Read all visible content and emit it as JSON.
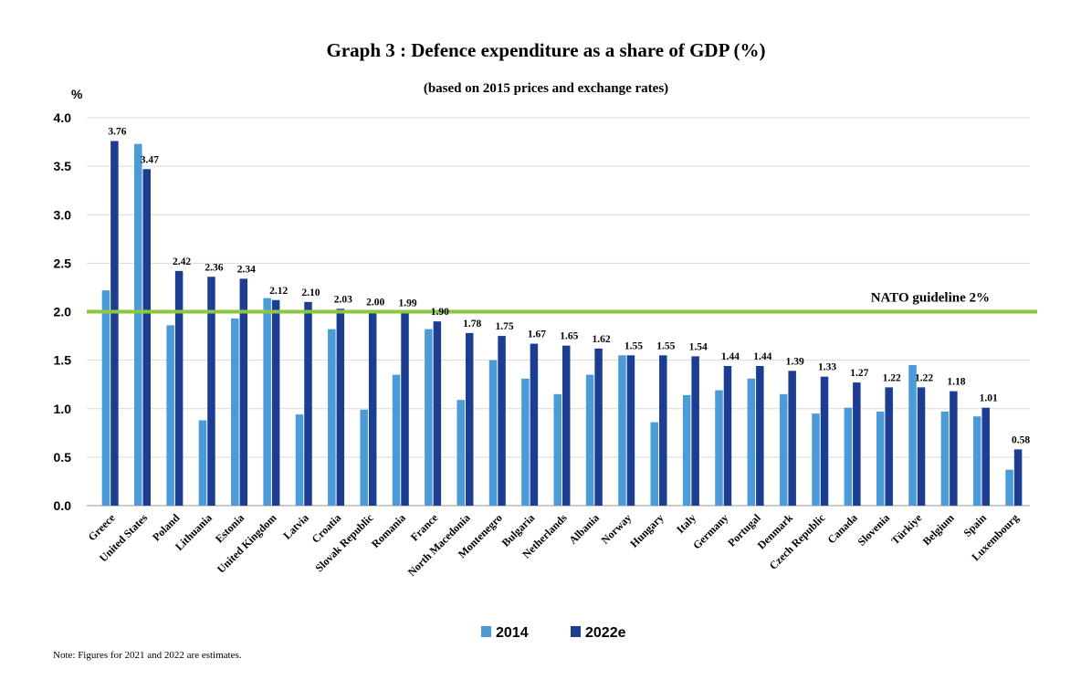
{
  "chart_data": {
    "type": "bar",
    "title": "Graph 3 : Defence expenditure as a share of GDP (%)",
    "subtitle": "(based on 2015 prices and exchange rates)",
    "ylabel": "%",
    "ylim": [
      0,
      4.0
    ],
    "yticks": [
      "0.0",
      "0.5",
      "1.0",
      "1.5",
      "2.0",
      "2.5",
      "3.0",
      "3.5",
      "4.0"
    ],
    "grid": true,
    "legend_position": "bottom-center",
    "categories": [
      "Greece",
      "United States",
      "Poland",
      "Lithuania",
      "Estonia",
      "United Kingdom",
      "Latvia",
      "Croatia",
      "Slovak Republic",
      "Romania",
      "France",
      "North Macedonia",
      "Montenegro",
      "Bulgaria",
      "Netherlands",
      "Albania",
      "Norway",
      "Hungary",
      "Italy",
      "Germany",
      "Portugal",
      "Denmark",
      "Czech Republic",
      "Canada",
      "Slovenia",
      "Türkiye",
      "Belgium",
      "Spain",
      "Luxembourg"
    ],
    "series": [
      {
        "name": "2014",
        "color": "#4A9BD8",
        "values": [
          2.22,
          3.73,
          1.86,
          0.88,
          1.93,
          2.14,
          0.94,
          1.82,
          0.99,
          1.35,
          1.82,
          1.09,
          1.5,
          1.31,
          1.15,
          1.35,
          1.55,
          0.86,
          1.14,
          1.19,
          1.31,
          1.15,
          0.95,
          1.01,
          0.97,
          1.45,
          0.97,
          0.92,
          0.37
        ]
      },
      {
        "name": "2022e",
        "color": "#1B3E93",
        "values": [
          3.76,
          3.47,
          2.42,
          2.36,
          2.34,
          2.12,
          2.1,
          2.03,
          2.0,
          1.99,
          1.9,
          1.78,
          1.75,
          1.67,
          1.65,
          1.62,
          1.55,
          1.55,
          1.54,
          1.44,
          1.44,
          1.39,
          1.33,
          1.27,
          1.22,
          1.22,
          1.18,
          1.01,
          0.58
        ],
        "labels": [
          "3.76",
          "3.47",
          "2.42",
          "2.36",
          "2.34",
          "2.12",
          "2.10",
          "2.03",
          "2.00",
          "1.99",
          "1.90",
          "1.78",
          "1.75",
          "1.67",
          "1.65",
          "1.62",
          "1.55",
          "1.55",
          "1.54",
          "1.44",
          "1.44",
          "1.39",
          "1.33",
          "1.27",
          "1.22",
          "1.22",
          "1.18",
          "1.01",
          "0.58"
        ]
      }
    ],
    "reference_line": {
      "value": 2.0,
      "label": "NATO guideline 2%",
      "color": "#8DC63F"
    }
  },
  "note": "Note: Figures for 2021 and 2022 are estimates."
}
